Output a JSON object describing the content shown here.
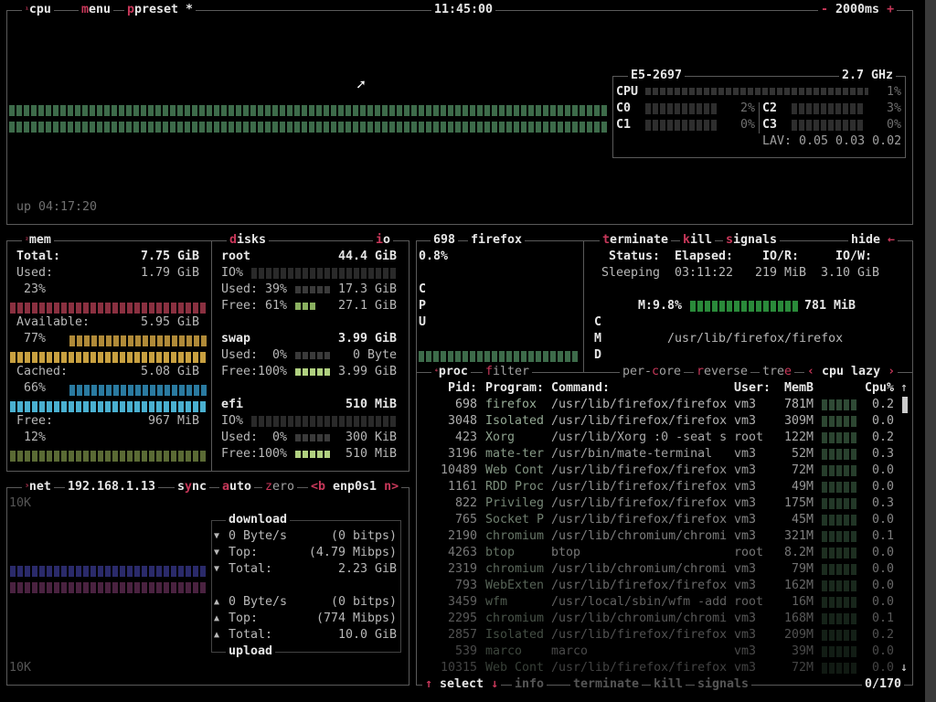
{
  "cpu": {
    "title": "cpu",
    "menu": "menu",
    "preset": "preset *",
    "clock": "11:45:00",
    "interval": "2000ms",
    "uptime": "up 04:17:20",
    "model": "E5-2697",
    "freq": "2.7 GHz",
    "total_label": "CPU",
    "total_pct": "1%",
    "cores": [
      {
        "label": "C0",
        "pct": "2%"
      },
      {
        "label": "C1",
        "pct": "0%"
      },
      {
        "label": "C2",
        "pct": "3%"
      },
      {
        "label": "C3",
        "pct": "0%"
      }
    ],
    "lav": "LAV: 0.05 0.03 0.02",
    "graph_color": "#4a7a4a"
  },
  "mem": {
    "title": "mem",
    "total_label": "Total:",
    "total": "7.75 GiB",
    "rows": [
      {
        "label": "Used:",
        "value": "1.79 GiB",
        "pct": "23%",
        "color": "#a03a4a"
      },
      {
        "label": "Available:",
        "value": "5.95 GiB",
        "pct": "77%",
        "color": "#c8a040"
      },
      {
        "label": "Cached:",
        "value": "5.08 GiB",
        "pct": "66%",
        "color": "#3a9ac0"
      },
      {
        "label": "Free:",
        "value": "967 MiB",
        "pct": "12%",
        "color": "#6a7a3a"
      }
    ]
  },
  "disks": {
    "title": "disks",
    "io": "io",
    "items": [
      {
        "name": "root",
        "size": "44.4 GiB",
        "io": "IO%",
        "used": "Used: 39%",
        "used_val": "17.3 GiB",
        "free": "Free: 61%",
        "free_val": "27.1 GiB"
      },
      {
        "name": "swap",
        "size": "3.99 GiB",
        "used": "Used:  0%",
        "used_val": "0 Byte",
        "free": "Free:100%",
        "free_val": "3.99 GiB"
      },
      {
        "name": "efi",
        "size": "510 MiB",
        "io": "IO%",
        "used": "Used:  0%",
        "used_val": "300 KiB",
        "free": "Free:100%",
        "free_val": "510 MiB"
      }
    ]
  },
  "net": {
    "title": "net",
    "ip": "192.168.1.13",
    "sync": "sync",
    "auto": "auto",
    "zero": "zero",
    "prev": "<b",
    "iface": "enp0s1",
    "next": "n>",
    "scale_top": "10K",
    "scale_bottom": "10K",
    "download": {
      "title": "download",
      "rate": "0 Byte/s",
      "rate_bits": "(0 bitps)",
      "top_label": "Top:",
      "top": "(4.79 Mibps)",
      "total_label": "Total:",
      "total": "2.23 GiB"
    },
    "upload": {
      "title": "upload",
      "rate": "0 Byte/s",
      "rate_bits": "(0 bitps)",
      "top_label": "Top:",
      "top": "(774 Mibps)",
      "total_label": "Total:",
      "total": "10.0 GiB"
    }
  },
  "detail": {
    "pid": "698",
    "name": "firefox",
    "cpu_pct": "0.8%",
    "terminate": "terminate",
    "kill": "kill",
    "signals": "signals",
    "hide": "hide",
    "status_label": "Status:",
    "elapsed_label": "Elapsed:",
    "ior_label": "IO/R:",
    "iow_label": "IO/W:",
    "status": "Sleeping",
    "elapsed": "03:11:22",
    "ior": "219 MiB",
    "iow": "3.10 GiB",
    "mem": "M:9.8%",
    "mem_val": "781 MiB",
    "cmd": "/usr/lib/firefox/firefox"
  },
  "proc": {
    "title": "proc",
    "filter": "filter",
    "per_core": "per-core",
    "reverse": "reverse",
    "tree": "tree",
    "sort": "cpu lazy",
    "headers": {
      "pid": "Pid:",
      "program": "Program:",
      "command": "Command:",
      "user": "User:",
      "mem": "MemB",
      "cpu": "Cpu%"
    },
    "rows": [
      {
        "pid": "698",
        "program": "firefox",
        "command": "/usr/lib/firefox/firefox",
        "user": "vm3",
        "mem": "781M",
        "cpu": "0.2"
      },
      {
        "pid": "3048",
        "program": "Isolated",
        "command": "/usr/lib/firefox/firefox",
        "user": "vm3",
        "mem": "309M",
        "cpu": "0.0"
      },
      {
        "pid": "423",
        "program": "Xorg",
        "command": "/usr/lib/Xorg :0 -seat s",
        "user": "root",
        "mem": "122M",
        "cpu": "0.2"
      },
      {
        "pid": "3196",
        "program": "mate-ter",
        "command": "/usr/bin/mate-terminal",
        "user": "vm3",
        "mem": "52M",
        "cpu": "0.3"
      },
      {
        "pid": "10489",
        "program": "Web Cont",
        "command": "/usr/lib/firefox/firefox",
        "user": "vm3",
        "mem": "72M",
        "cpu": "0.0"
      },
      {
        "pid": "1161",
        "program": "RDD Proc",
        "command": "/usr/lib/firefox/firefox",
        "user": "vm3",
        "mem": "49M",
        "cpu": "0.0"
      },
      {
        "pid": "822",
        "program": "Privileg",
        "command": "/usr/lib/firefox/firefox",
        "user": "vm3",
        "mem": "175M",
        "cpu": "0.3"
      },
      {
        "pid": "765",
        "program": "Socket P",
        "command": "/usr/lib/firefox/firefox",
        "user": "vm3",
        "mem": "45M",
        "cpu": "0.0"
      },
      {
        "pid": "2190",
        "program": "chromium",
        "command": "/usr/lib/chromium/chromi",
        "user": "vm3",
        "mem": "321M",
        "cpu": "0.1"
      },
      {
        "pid": "4263",
        "program": "btop",
        "command": "btop",
        "user": "root",
        "mem": "8.2M",
        "cpu": "0.0"
      },
      {
        "pid": "2319",
        "program": "chromium",
        "command": "/usr/lib/chromium/chromi",
        "user": "vm3",
        "mem": "79M",
        "cpu": "0.0"
      },
      {
        "pid": "793",
        "program": "WebExten",
        "command": "/usr/lib/firefox/firefox",
        "user": "vm3",
        "mem": "162M",
        "cpu": "0.0"
      },
      {
        "pid": "3459",
        "program": "wfm",
        "command": "/usr/local/sbin/wfm -add",
        "user": "root",
        "mem": "16M",
        "cpu": "0.0"
      },
      {
        "pid": "2295",
        "program": "chromium",
        "command": "/usr/lib/chromium/chromi",
        "user": "vm3",
        "mem": "168M",
        "cpu": "0.1"
      },
      {
        "pid": "2857",
        "program": "Isolated",
        "command": "/usr/lib/firefox/firefox",
        "user": "vm3",
        "mem": "209M",
        "cpu": "0.2"
      },
      {
        "pid": "539",
        "program": "marco",
        "command": "marco",
        "user": "vm3",
        "mem": "39M",
        "cpu": "0.0"
      },
      {
        "pid": "10315",
        "program": "Web Cont",
        "command": "/usr/lib/firefox/firefox",
        "user": "vm3",
        "mem": "72M",
        "cpu": "0.0"
      }
    ],
    "footer": {
      "select": "select",
      "info": "info",
      "terminate": "terminate",
      "kill": "kill",
      "signals": "signals",
      "count": "0/170"
    }
  }
}
